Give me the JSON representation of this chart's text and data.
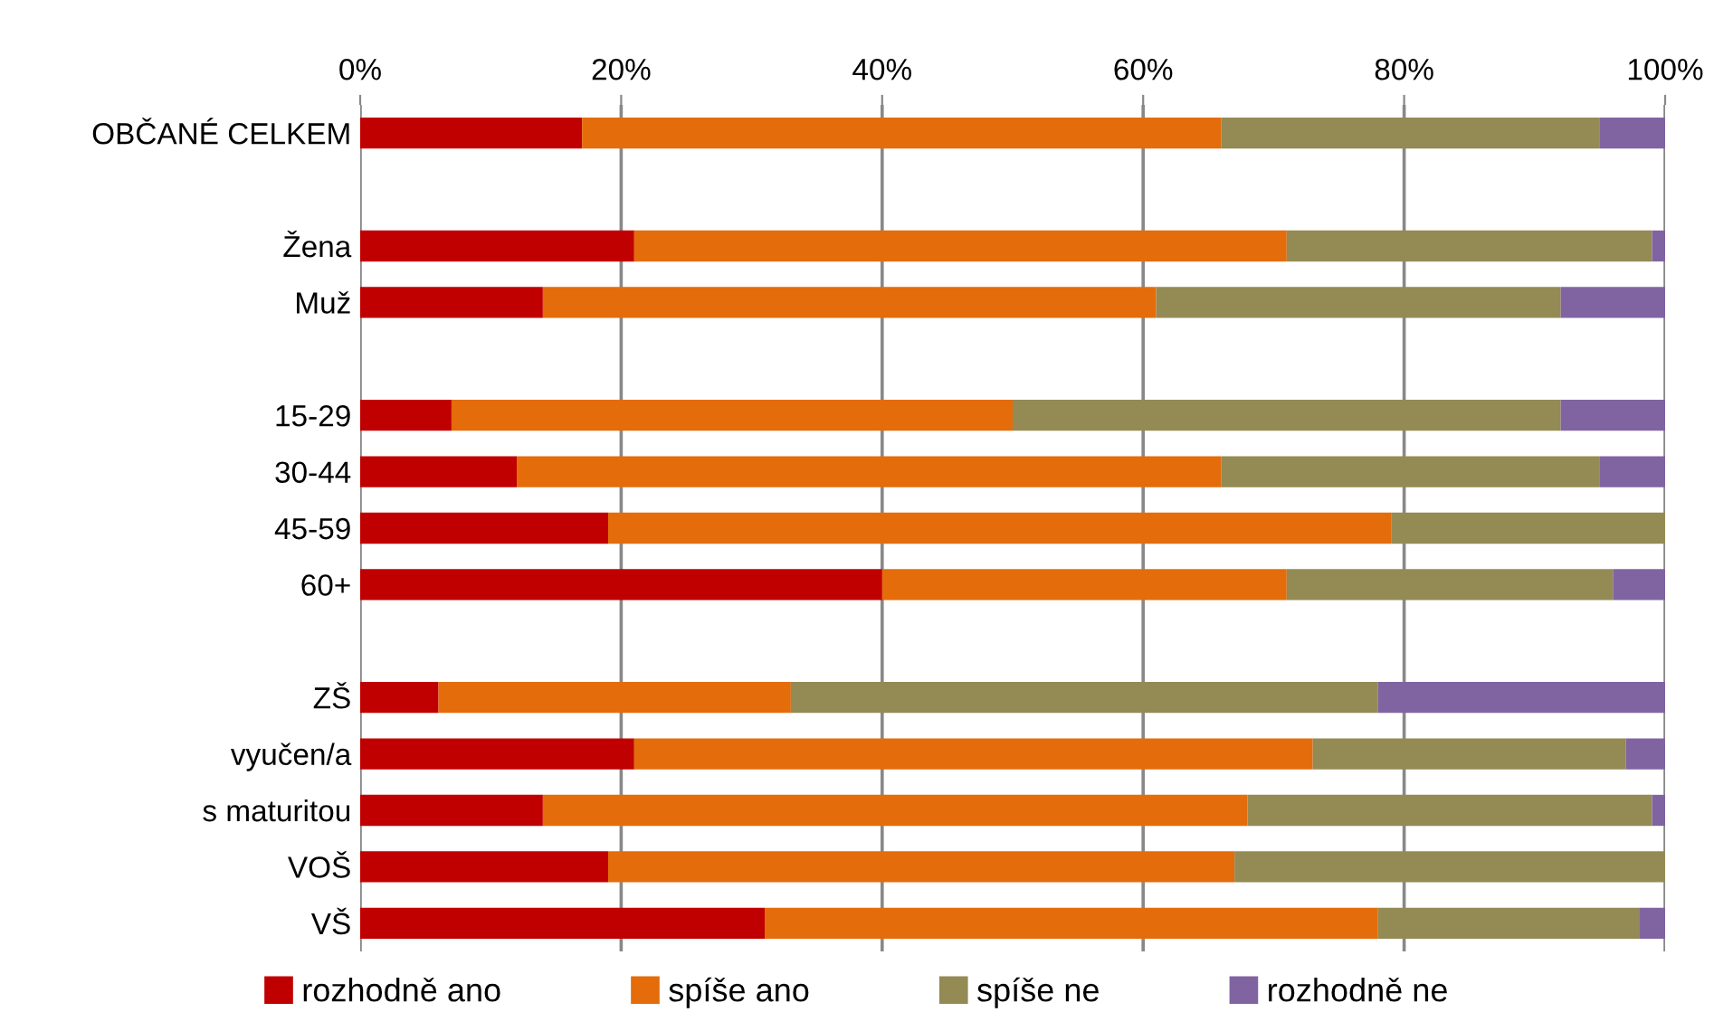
{
  "chart_data": {
    "type": "bar",
    "orientation": "horizontal",
    "stacked": true,
    "categories": [
      "OBČANÉ CELKEM",
      null,
      "Žena",
      "Muž",
      null,
      "15-29",
      "30-44",
      "45-59",
      "60+",
      null,
      "ZŠ",
      "vyučen/a",
      "s maturitou",
      "VOŠ",
      "VŠ"
    ],
    "series": [
      {
        "name": "rozhodně ano",
        "color": "#c00000",
        "values": [
          17,
          null,
          21,
          14,
          null,
          7,
          12,
          19,
          40,
          null,
          6,
          21,
          14,
          19,
          31
        ]
      },
      {
        "name": "spíše ano",
        "color": "#e46c0a",
        "values": [
          49,
          null,
          50,
          47,
          null,
          43,
          54,
          60,
          31,
          null,
          27,
          52,
          54,
          48,
          47
        ]
      },
      {
        "name": "spíše ne",
        "color": "#948a54",
        "values": [
          29,
          null,
          28,
          31,
          null,
          42,
          29,
          21,
          25,
          null,
          45,
          24,
          31,
          33,
          20
        ]
      },
      {
        "name": "rozhodně ne",
        "color": "#8064a2",
        "values": [
          5,
          null,
          1,
          8,
          null,
          8,
          5,
          0,
          4,
          null,
          22,
          3,
          1,
          0,
          2
        ]
      }
    ],
    "xlim": [
      0,
      100
    ],
    "xticks": [
      {
        "value": 0,
        "label": "0%"
      },
      {
        "value": 20,
        "label": "20%"
      },
      {
        "value": 40,
        "label": "40%"
      },
      {
        "value": 60,
        "label": "60%"
      },
      {
        "value": 80,
        "label": "80%"
      },
      {
        "value": 100,
        "label": "100%"
      }
    ],
    "grid": "x",
    "legend": "bottom"
  }
}
